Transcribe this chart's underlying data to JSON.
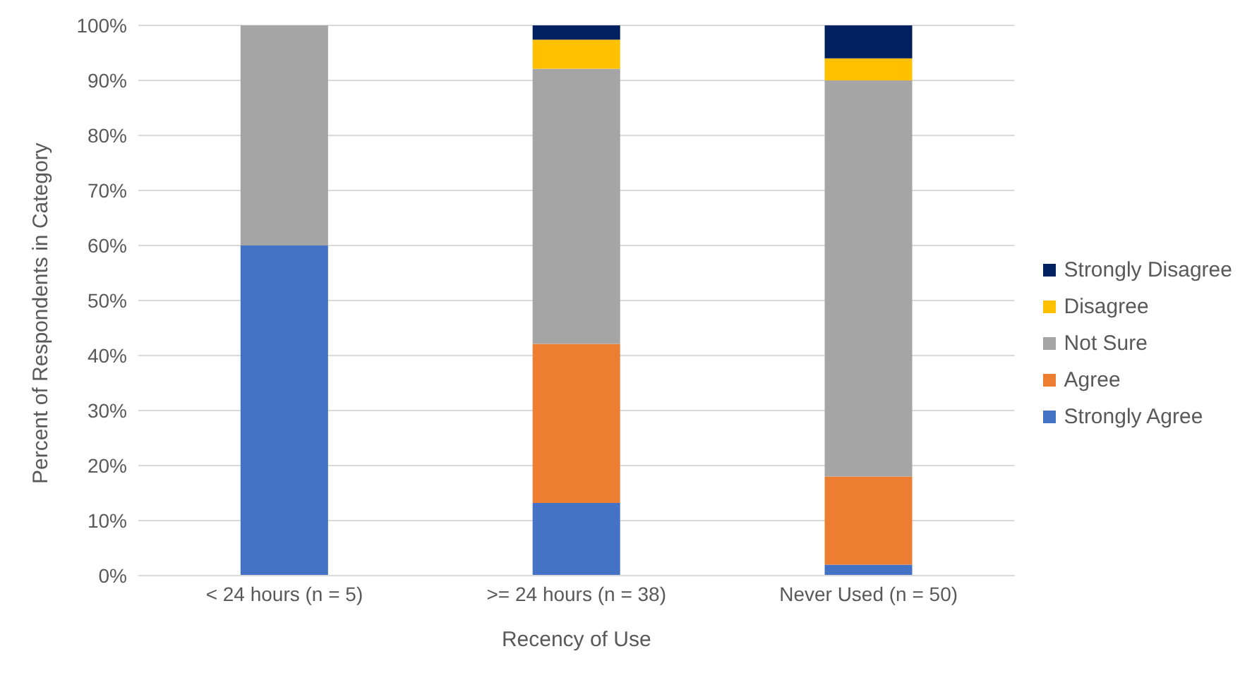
{
  "chart_data": {
    "type": "bar",
    "stacked": true,
    "xlabel": "Recency of Use",
    "ylabel": "Percent of Respondents in Category",
    "categories": [
      "< 24 hours (n = 5)",
      ">= 24 hours (n = 38)",
      "Never Used (n = 50)"
    ],
    "series": [
      {
        "name": "Strongly Agree",
        "color": "#4472c4",
        "values": [
          60,
          13.2,
          2
        ]
      },
      {
        "name": "Agree",
        "color": "#ed7d31",
        "values": [
          0,
          28.9,
          16
        ]
      },
      {
        "name": "Not Sure",
        "color": "#a5a5a5",
        "values": [
          40,
          50,
          72
        ]
      },
      {
        "name": "Disagree",
        "color": "#ffc000",
        "values": [
          0,
          5.3,
          4
        ]
      },
      {
        "name": "Strongly Disagree",
        "color": "#002060",
        "values": [
          0,
          2.6,
          6
        ]
      }
    ],
    "ylim": [
      0,
      100
    ],
    "yticks": [
      {
        "value": 0,
        "label": "0%"
      },
      {
        "value": 10,
        "label": "10%"
      },
      {
        "value": 20,
        "label": "20%"
      },
      {
        "value": 30,
        "label": "30%"
      },
      {
        "value": 40,
        "label": "40%"
      },
      {
        "value": 50,
        "label": "50%"
      },
      {
        "value": 60,
        "label": "60%"
      },
      {
        "value": 70,
        "label": "70%"
      },
      {
        "value": 80,
        "label": "80%"
      },
      {
        "value": 90,
        "label": "90%"
      },
      {
        "value": 100,
        "label": "100%"
      }
    ],
    "grid": "y",
    "legend": "right"
  }
}
